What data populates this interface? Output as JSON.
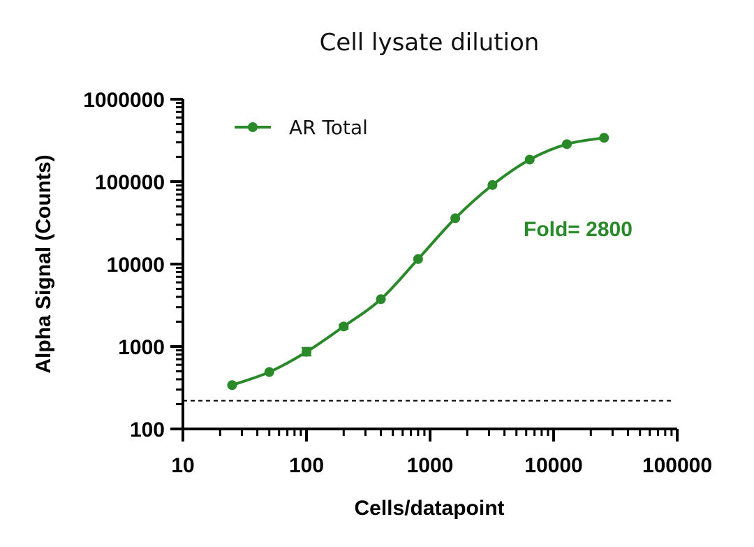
{
  "chart_data": {
    "type": "line",
    "title": "Cell lysate dilution",
    "xlabel": "Cells/datapoint",
    "ylabel": "Alpha Signal (Counts)",
    "x_scale": "log",
    "y_scale": "log",
    "xlim": [
      10,
      100000
    ],
    "ylim": [
      100,
      1000000
    ],
    "x_ticks": [
      "10",
      "100",
      "1000",
      "10000",
      "100000"
    ],
    "y_ticks": [
      "100",
      "1000",
      "10000",
      "100000",
      "1000000"
    ],
    "series": [
      {
        "name": "AR Total",
        "color": "#2a8a2a",
        "x": [
          25,
          50,
          100,
          200,
          400,
          800,
          1600,
          3200,
          6400,
          12800,
          25600
        ],
        "y": [
          340,
          490,
          860,
          1750,
          3750,
          11500,
          36000,
          91000,
          185000,
          285000,
          340000
        ],
        "error_upper": [
          null,
          null,
          960,
          1830,
          null,
          null,
          null,
          null,
          null,
          null,
          null
        ],
        "error_lower": [
          null,
          null,
          780,
          1650,
          null,
          null,
          null,
          null,
          null,
          null,
          null
        ]
      }
    ],
    "background_level": 220,
    "annotation": "Fold= 2800",
    "legend_position": "top-left",
    "grid": false
  }
}
